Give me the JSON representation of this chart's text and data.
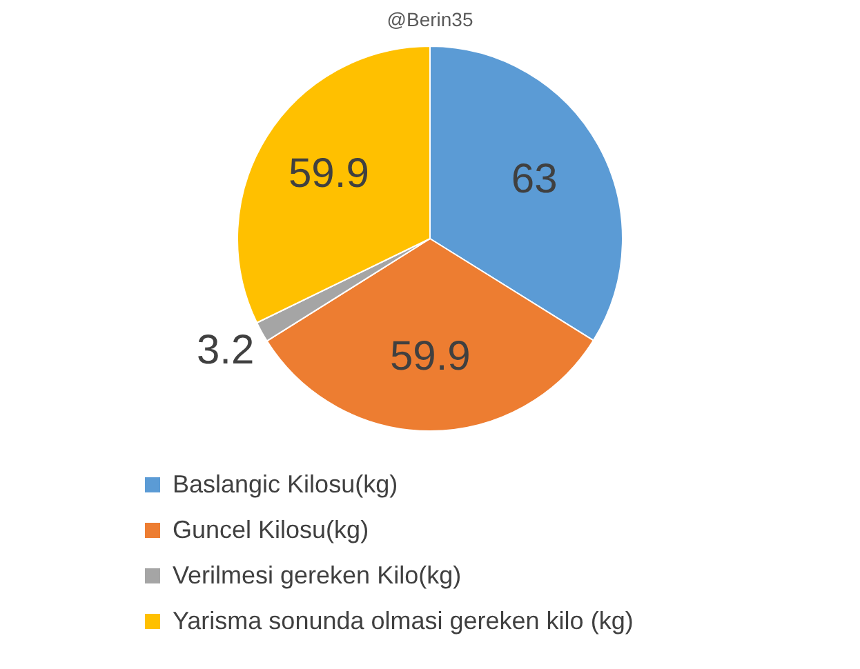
{
  "chart_data": {
    "type": "pie",
    "title": "@Berin35",
    "categories": [
      "Baslangic Kilosu(kg)",
      "Guncel Kilosu(kg)",
      "Verilmesi gereken Kilo(kg)",
      "Yarisma sonunda olmasi gereken kilo (kg)"
    ],
    "values": [
      63,
      59.9,
      3.2,
      59.9
    ],
    "colors": [
      "#5b9bd5",
      "#ed7d31",
      "#a5a5a5",
      "#ffc000"
    ],
    "data_labels": true,
    "legend": "bottom"
  }
}
